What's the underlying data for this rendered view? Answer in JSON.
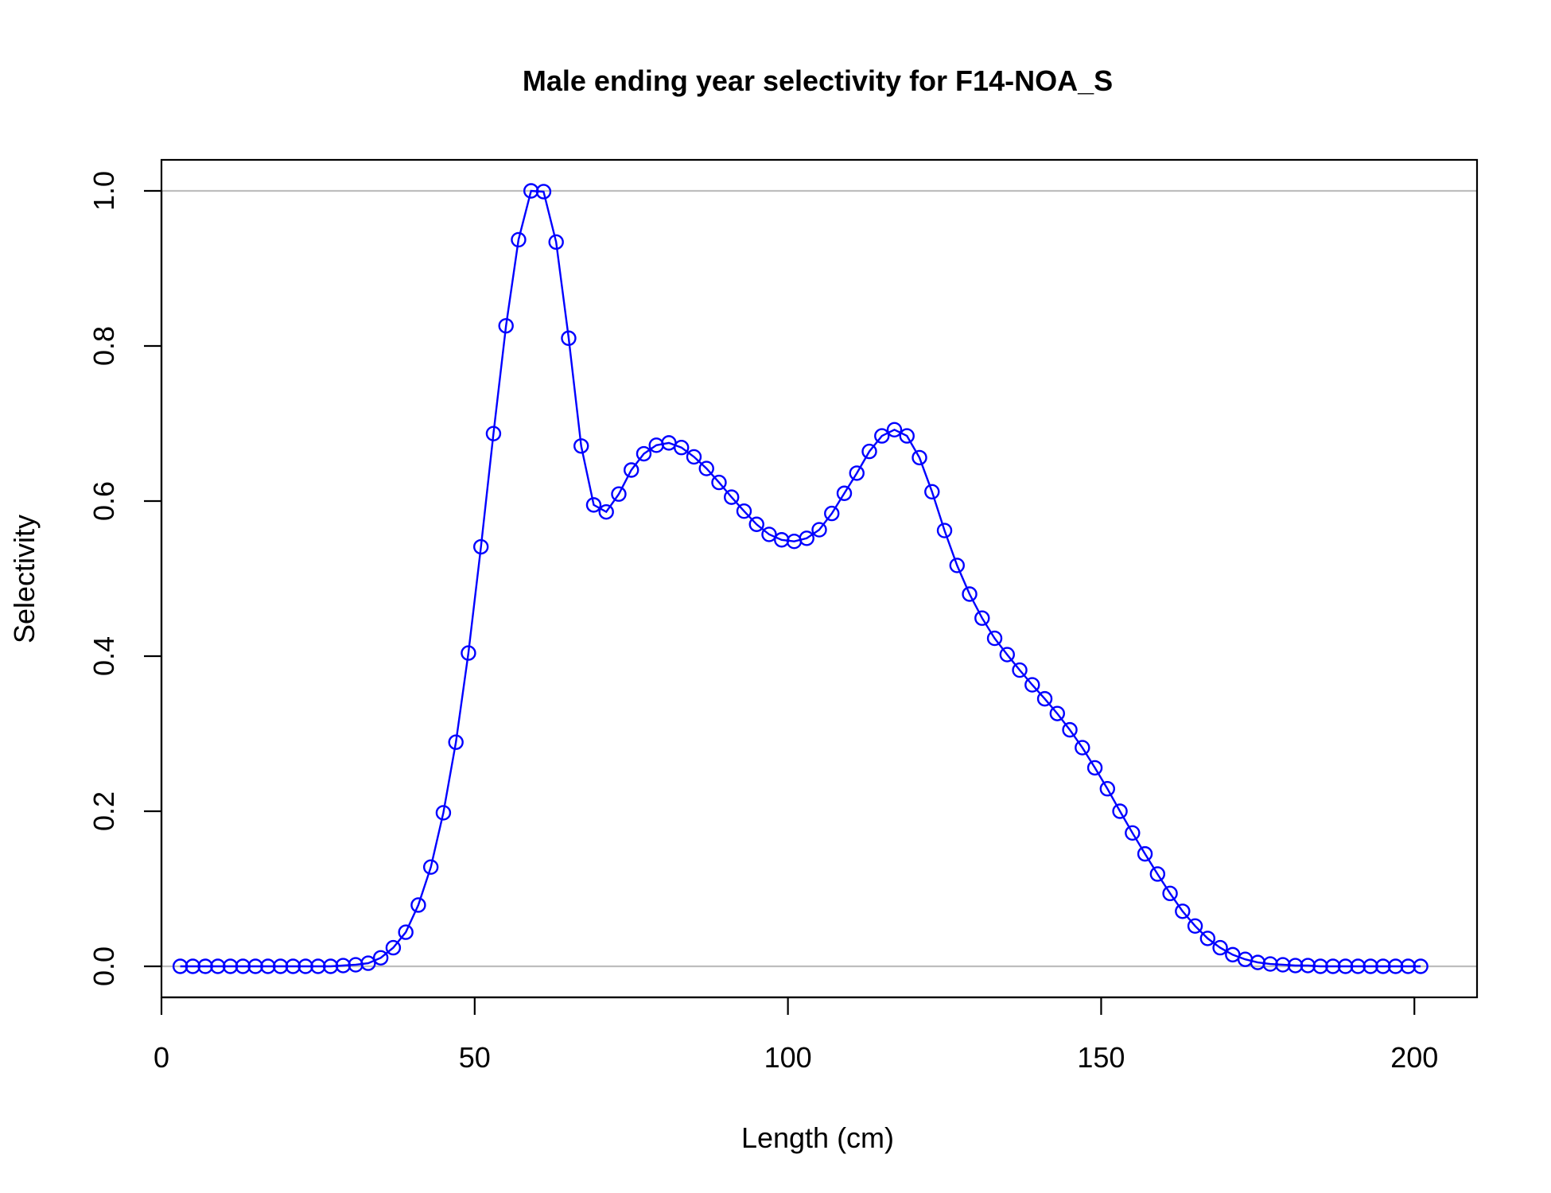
{
  "chart_data": {
    "type": "line",
    "title": "Male ending year selectivity for F14-NOA_S",
    "xlabel": "Length (cm)",
    "ylabel": "Selectivity",
    "xlim": [
      0,
      210
    ],
    "ylim": [
      -0.04,
      1.04
    ],
    "x_ticks": [
      0,
      50,
      100,
      150,
      200
    ],
    "x_tick_labels": [
      "0",
      "50",
      "100",
      "150",
      "200"
    ],
    "y_ticks": [
      0,
      0.2,
      0.4,
      0.6,
      0.8,
      1.0
    ],
    "y_tick_labels": [
      "0.0",
      "0.2",
      "0.4",
      "0.6",
      "0.8",
      "1.0"
    ],
    "reference_lines": [
      0,
      1
    ],
    "grid": false,
    "legend": "none",
    "marker": "open-circle",
    "colors": {
      "series": "#0000ff",
      "reference": "#bebebe",
      "axis": "#000000"
    },
    "series": [
      {
        "x": [
          3,
          5,
          7,
          9,
          11,
          13,
          15,
          17,
          19,
          21,
          23,
          25,
          27,
          29,
          31,
          33,
          35,
          37,
          39,
          41,
          43,
          45,
          47,
          49,
          51,
          53,
          55,
          57,
          59,
          61,
          63,
          65,
          67,
          69,
          71,
          73,
          75,
          77,
          79,
          81,
          83,
          85,
          87,
          89,
          91,
          93,
          95,
          97,
          99,
          101,
          103,
          105,
          107,
          109,
          111,
          113,
          115,
          117,
          119,
          121,
          123,
          125,
          127,
          129,
          131,
          133,
          135,
          137,
          139,
          141,
          143,
          145,
          147,
          149,
          151,
          153,
          155,
          157,
          159,
          161,
          163,
          165,
          167,
          169,
          171,
          173,
          175,
          177,
          179,
          181,
          183,
          185,
          187,
          189,
          191,
          193,
          195,
          197,
          199,
          201
        ],
        "values": [
          0,
          0,
          0,
          0,
          0,
          0,
          0,
          0,
          0,
          0,
          0,
          0,
          0,
          0.001,
          0.002,
          0.004,
          0.011,
          0.024,
          0.044,
          0.079,
          0.128,
          0.198,
          0.289,
          0.404,
          0.541,
          0.687,
          0.826,
          0.937,
          1.0,
          0.999,
          0.934,
          0.81,
          0.671,
          0.595,
          0.586,
          0.609,
          0.64,
          0.661,
          0.672,
          0.675,
          0.669,
          0.657,
          0.642,
          0.624,
          0.605,
          0.587,
          0.57,
          0.557,
          0.55,
          0.548,
          0.552,
          0.563,
          0.584,
          0.61,
          0.636,
          0.664,
          0.684,
          0.692,
          0.684,
          0.656,
          0.612,
          0.562,
          0.517,
          0.48,
          0.449,
          0.423,
          0.402,
          0.382,
          0.363,
          0.345,
          0.326,
          0.305,
          0.282,
          0.256,
          0.229,
          0.2,
          0.172,
          0.145,
          0.119,
          0.094,
          0.071,
          0.052,
          0.036,
          0.024,
          0.015,
          0.009,
          0.005,
          0.003,
          0.002,
          0.001,
          0.001,
          0,
          0,
          0,
          0,
          0,
          0,
          0,
          0,
          0
        ]
      }
    ]
  }
}
